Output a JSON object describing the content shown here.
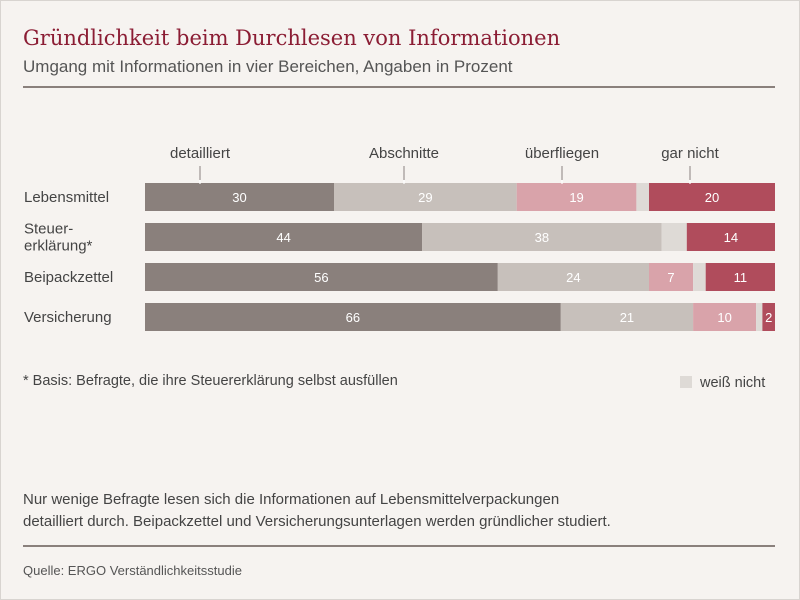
{
  "title": "Gründlichkeit beim Durchlesen von Informationen",
  "subtitle": "Umgang mit Informationen in vier Bereichen, Angaben in Prozent",
  "footnote": "* Basis: Befragte, die ihre Steuererklärung selbst ausfüllen",
  "legend_not_known": "weiß nicht",
  "summary": [
    "Nur wenige Befragte lesen sich die Informationen auf Lebensmittelverpackungen",
    "detailliert durch. Beipackzettel und Versicherungsunterlagen werden gründlicher studiert."
  ],
  "source": "Quelle: ERGO Verständlichkeitsstudie",
  "colors": {
    "detailliert": "#8a807c",
    "Abschnitte": "#c7c0bb",
    "überfliegen": "#d9a3aa",
    "weiß nicht": "#dedad6",
    "gar nicht": "#b04c5c"
  },
  "chart_data": {
    "type": "bar",
    "orientation": "horizontal",
    "stacked": true,
    "unit": "Prozent",
    "categories": [
      [
        "Lebensmittel"
      ],
      [
        "Steuer-",
        "erklärung*"
      ],
      [
        "Beipackzettel"
      ],
      [
        "Versicherung"
      ]
    ],
    "series": [
      {
        "name": "detailliert",
        "values": [
          30,
          44,
          56,
          66
        ]
      },
      {
        "name": "Abschnitte",
        "values": [
          29,
          38,
          24,
          21
        ]
      },
      {
        "name": "überfliegen",
        "values": [
          19,
          0,
          7,
          10
        ]
      },
      {
        "name": "weiß nicht",
        "values": [
          2,
          4,
          2,
          1
        ],
        "show_labels": false
      },
      {
        "name": "gar nicht",
        "values": [
          20,
          14,
          11,
          2
        ]
      }
    ],
    "legend_top": [
      "detailliert",
      "Abschnitte",
      "überfliegen",
      "gar nicht"
    ],
    "xlim": [
      0,
      100
    ],
    "grid": false
  }
}
